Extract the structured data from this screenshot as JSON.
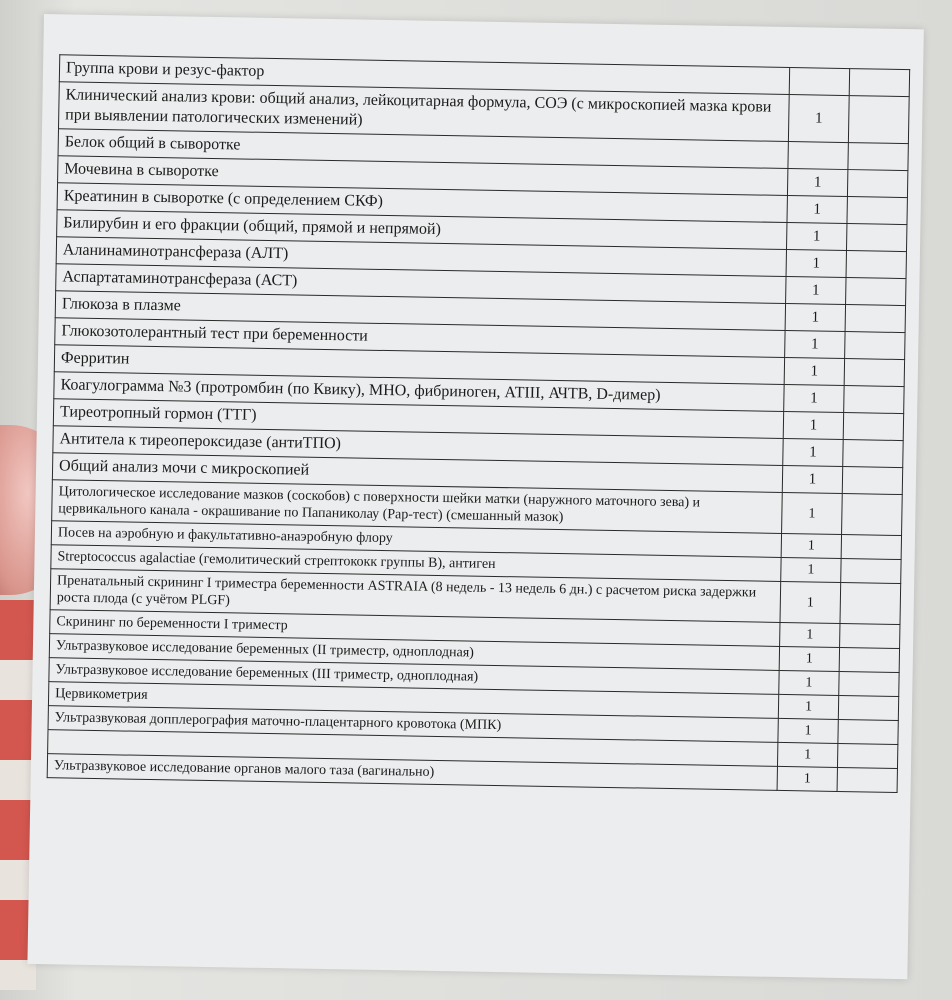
{
  "rows": [
    {
      "name": "Группа крови и резус-фактор",
      "qty": ""
    },
    {
      "name": "Клинический анализ крови: общий анализ, лейкоцитарная формула, СОЭ (с микроскопией мазка крови при выявлении патологических изменений)",
      "qty": "1"
    },
    {
      "name": "Белок общий в сыворотке",
      "qty": ""
    },
    {
      "name": "Мочевина в сыворотке",
      "qty": "1"
    },
    {
      "name": "Креатинин в сыворотке (с определением СКФ)",
      "qty": "1"
    },
    {
      "name": "Билирубин и его фракции (общий, прямой и непрямой)",
      "qty": "1"
    },
    {
      "name": "Аланинаминотрансфераза (АЛТ)",
      "qty": "1"
    },
    {
      "name": "Аспартатаминотрансфераза (АСТ)",
      "qty": "1"
    },
    {
      "name": "Глюкоза в плазме",
      "qty": "1"
    },
    {
      "name": "Глюкозотолерантный тест при беременности",
      "qty": "1"
    },
    {
      "name": "Ферритин",
      "qty": "1"
    },
    {
      "name": "Коагулограмма №3 (протромбин (по Квику), МНО, фибриноген, АТIII, АЧТВ, D-димер)",
      "qty": "1"
    },
    {
      "name": "Тиреотропный гормон (ТТГ)",
      "qty": "1"
    },
    {
      "name": "Антитела к тиреопероксидазе (антиТПО)",
      "qty": "1"
    },
    {
      "name": "Общий анализ мочи с микроскопией",
      "qty": "1"
    },
    {
      "name": "Цитологическое исследование мазков (соскобов) с поверхности шейки матки (наружного маточного зева) и цервикального канала - окрашивание по Папаниколау (Pap-тест) (смешанный мазок)",
      "qty": "1"
    },
    {
      "name": "Посев на аэробную и факультативно-анаэробную флору",
      "qty": "1"
    },
    {
      "name": "Streptococcus agalactiae (гемолитический стрептококк группы В), антиген",
      "qty": "1"
    },
    {
      "name": "Пренатальный скрининг I триместра беременности ASTRAIA (8 недель - 13 недель 6 дн.) с расчетом риска задержки роста плода (с учётом PLGF)",
      "qty": "1"
    },
    {
      "name": "Скрининг по беременности I триместр",
      "qty": "1"
    },
    {
      "name": "Ультразвуковое исследование беременных (II триместр, одноплодная)",
      "qty": "1"
    },
    {
      "name": "Ультразвуковое исследование беременных (III триместр, одноплодная)",
      "qty": "1"
    },
    {
      "name": "Цервикометрия",
      "qty": "1"
    },
    {
      "name": "Ультразвуковая допплерография маточно-плацентарного кровотока (МПК)",
      "qty": "1"
    },
    {
      "name": "",
      "qty": "1"
    },
    {
      "name": "Ультразвуковое исследование органов малого таза (вагинально)",
      "qty": "1"
    }
  ]
}
